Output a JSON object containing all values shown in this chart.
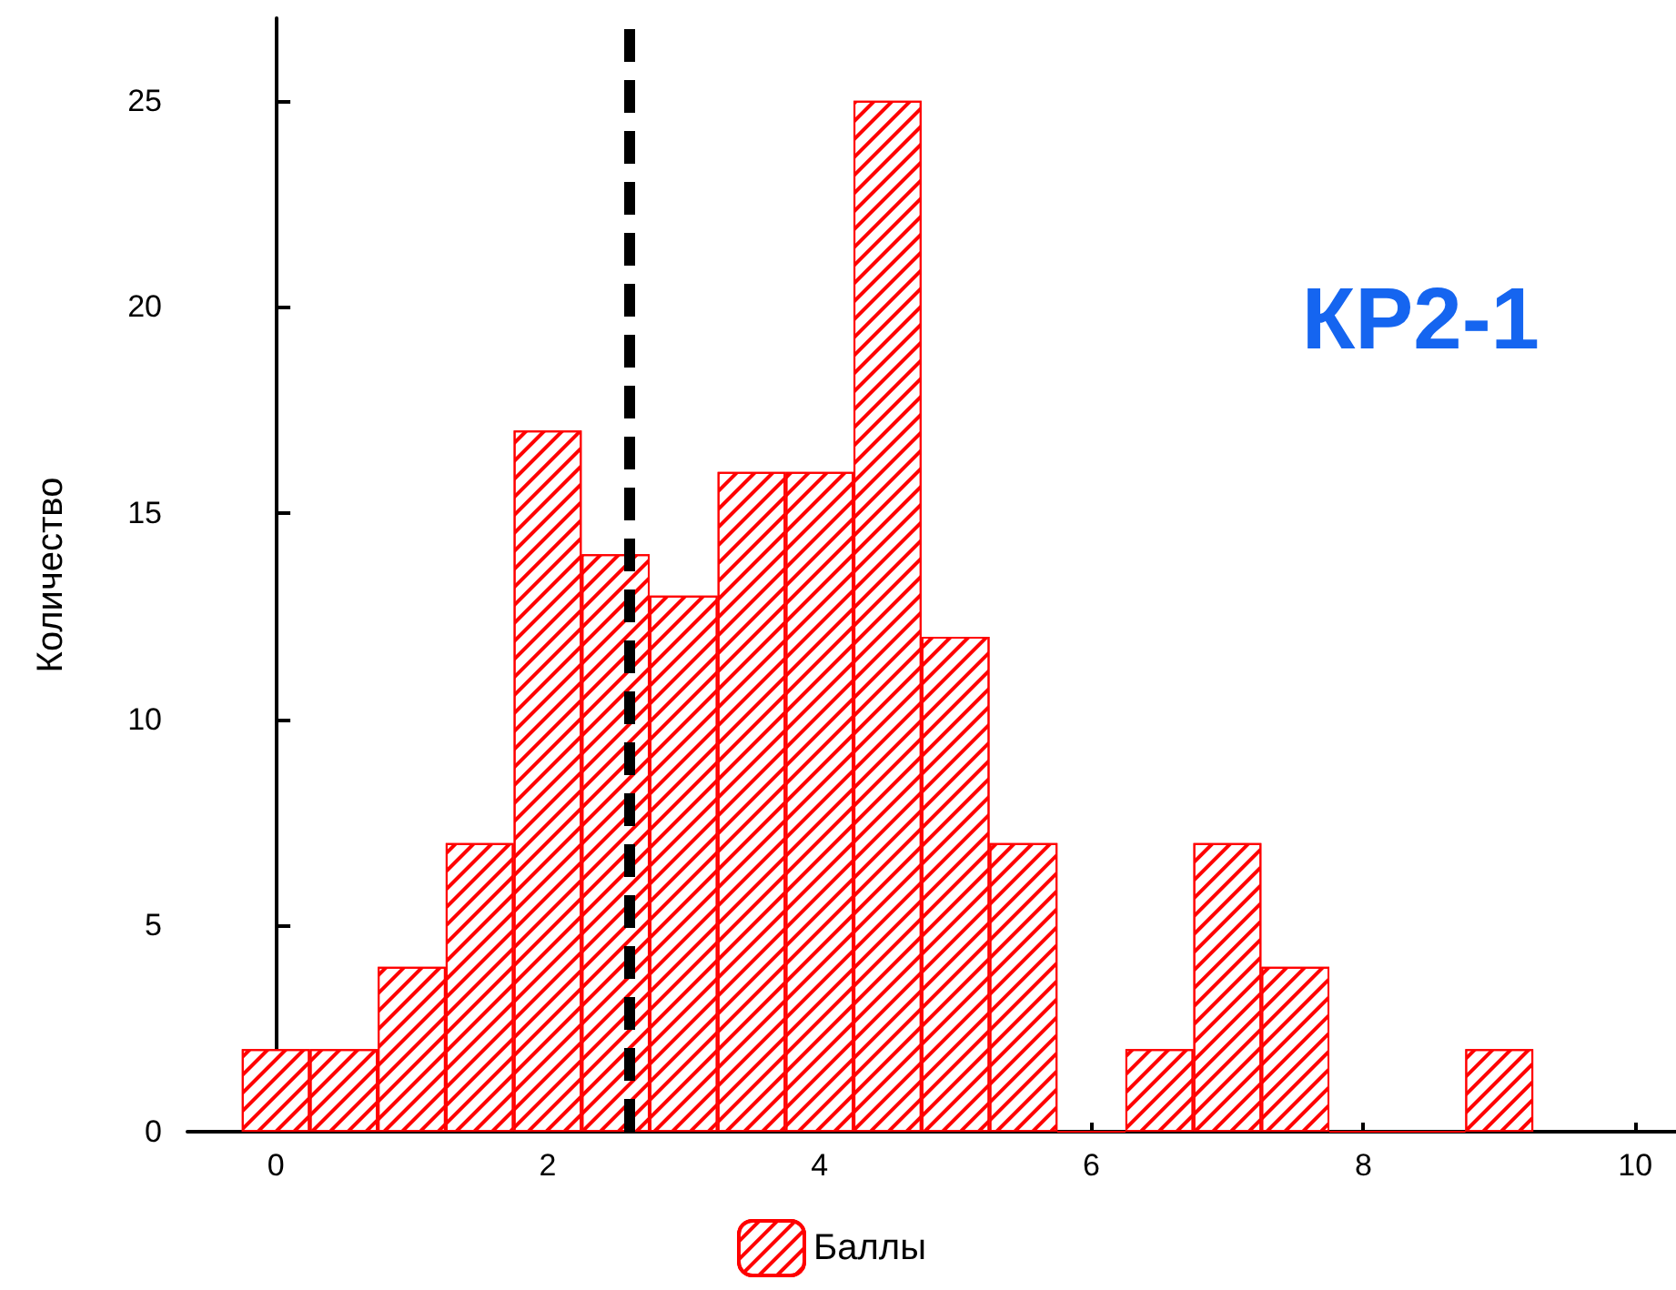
{
  "chart_data": {
    "type": "histogram",
    "bins": [
      -0.25,
      0.25,
      0.75,
      1.25,
      1.75,
      2.25,
      2.75,
      3.25,
      3.75,
      4.25,
      4.75,
      5.25,
      5.75,
      6.25,
      6.75,
      7.25,
      7.75,
      8.25,
      8.75,
      9.25
    ],
    "series": [
      {
        "name": "Баллы",
        "color": "#ff0000",
        "values": [
          2,
          2,
          4,
          7,
          17,
          14,
          13,
          16,
          16,
          25,
          12,
          7,
          0,
          2,
          7,
          4,
          0,
          0,
          2
        ]
      }
    ],
    "ylabel": "Количество",
    "annotations": [
      "КР2-1"
    ],
    "xlim": [
      -0.65,
      10.3
    ],
    "xticks": [
      0,
      2,
      4,
      6,
      8,
      10
    ],
    "ylim": [
      0,
      27
    ],
    "yticks": [
      0,
      5,
      10,
      15,
      20,
      25
    ],
    "ref_lines": [
      {
        "axis": "x",
        "value": 2.6,
        "color": "#000000",
        "line_style": "dashed"
      }
    ],
    "legend": "bottom"
  }
}
